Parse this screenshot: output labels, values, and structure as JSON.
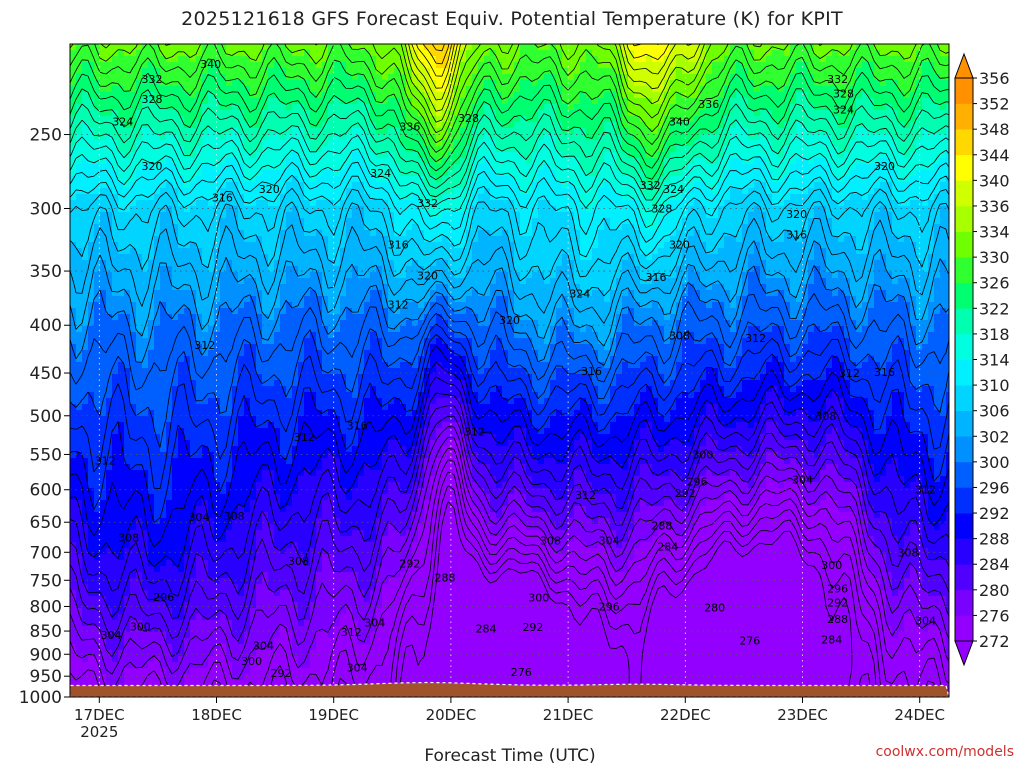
{
  "title": "2025121618 GFS Forecast Equiv. Potential Temperature (K) for KPIT",
  "xlabel": "Forecast Time (UTC)",
  "credit": "coolwx.com/models",
  "colors": {
    "ground": "#a0522d",
    "contour": "#000000",
    "grid": "#555555"
  },
  "chart_data": {
    "type": "heatmap",
    "title": "2025121618 GFS Forecast Equiv. Potential Temperature (K) for KPIT",
    "xlabel": "Forecast Time (UTC)",
    "ylabel": "",
    "y_axis_scale": "log pressure (hPa), decreasing upward",
    "ylim": [
      1000,
      200
    ],
    "y_ticks": [
      250,
      300,
      350,
      400,
      450,
      500,
      550,
      600,
      650,
      700,
      750,
      800,
      850,
      900,
      950,
      1000
    ],
    "x_ticks": [
      {
        "label": "17DEC",
        "sublabel": "2025",
        "day": 0
      },
      {
        "label": "18DEC",
        "day": 1
      },
      {
        "label": "19DEC",
        "day": 2
      },
      {
        "label": "20DEC",
        "day": 3
      },
      {
        "label": "21DEC",
        "day": 4
      },
      {
        "label": "22DEC",
        "day": 5
      },
      {
        "label": "23DEC",
        "day": 6
      },
      {
        "label": "24DEC",
        "day": 7
      }
    ],
    "xlim_days": [
      -0.25,
      7.25
    ],
    "colorbar": {
      "levels": [
        272,
        276,
        280,
        284,
        288,
        292,
        296,
        300,
        302,
        306,
        310,
        314,
        318,
        322,
        326,
        330,
        334,
        336,
        340,
        344,
        348,
        352,
        356
      ],
      "colors": [
        "#9400ff",
        "#7a00ff",
        "#5000ff",
        "#2800ff",
        "#0000ff",
        "#0030ff",
        "#0060ff",
        "#0090ff",
        "#00b4ff",
        "#00d4ff",
        "#00f0ff",
        "#00ffe0",
        "#00ffb0",
        "#00ff70",
        "#30ff30",
        "#70ff00",
        "#a8ff00",
        "#d0ff00",
        "#ffff00",
        "#ffd800",
        "#ffb000",
        "#ff9000"
      ],
      "extend": "both"
    },
    "contour_labels": [
      {
        "day": 0.95,
        "p": 210,
        "v": "340"
      },
      {
        "day": 0.45,
        "p": 218,
        "v": "332"
      },
      {
        "day": 0.45,
        "p": 229,
        "v": "328"
      },
      {
        "day": 0.2,
        "p": 242,
        "v": "324"
      },
      {
        "day": 0.45,
        "p": 270,
        "v": "320"
      },
      {
        "day": 1.05,
        "p": 292,
        "v": "316"
      },
      {
        "day": 1.45,
        "p": 286,
        "v": "320"
      },
      {
        "day": 0.9,
        "p": 420,
        "v": "312"
      },
      {
        "day": 0.05,
        "p": 558,
        "v": "312"
      },
      {
        "day": 0.25,
        "p": 675,
        "v": "308"
      },
      {
        "day": 0.85,
        "p": 642,
        "v": "304"
      },
      {
        "day": 1.15,
        "p": 640,
        "v": "308"
      },
      {
        "day": 1.75,
        "p": 527,
        "v": "312"
      },
      {
        "day": 1.7,
        "p": 715,
        "v": "308"
      },
      {
        "day": 0.55,
        "p": 782,
        "v": "296"
      },
      {
        "day": 0.35,
        "p": 840,
        "v": "300"
      },
      {
        "day": 0.1,
        "p": 858,
        "v": "304"
      },
      {
        "day": 1.4,
        "p": 881,
        "v": "304"
      },
      {
        "day": 1.3,
        "p": 915,
        "v": "300"
      },
      {
        "day": 1.55,
        "p": 942,
        "v": "292"
      },
      {
        "day": 2.2,
        "p": 512,
        "v": "316"
      },
      {
        "day": 2.65,
        "p": 245,
        "v": "336"
      },
      {
        "day": 2.4,
        "p": 275,
        "v": "324"
      },
      {
        "day": 2.8,
        "p": 296,
        "v": "332"
      },
      {
        "day": 3.15,
        "p": 240,
        "v": "328"
      },
      {
        "day": 2.55,
        "p": 328,
        "v": "316"
      },
      {
        "day": 2.8,
        "p": 354,
        "v": "320"
      },
      {
        "day": 2.55,
        "p": 380,
        "v": "312"
      },
      {
        "day": 3.2,
        "p": 520,
        "v": "312"
      },
      {
        "day": 2.15,
        "p": 852,
        "v": "312"
      },
      {
        "day": 2.35,
        "p": 832,
        "v": "304"
      },
      {
        "day": 2.2,
        "p": 930,
        "v": "304"
      },
      {
        "day": 2.65,
        "p": 720,
        "v": "292"
      },
      {
        "day": 2.95,
        "p": 745,
        "v": "288"
      },
      {
        "day": 3.3,
        "p": 845,
        "v": "284"
      },
      {
        "day": 3.6,
        "p": 940,
        "v": "276"
      },
      {
        "day": 3.5,
        "p": 395,
        "v": "320"
      },
      {
        "day": 4.1,
        "p": 370,
        "v": "324"
      },
      {
        "day": 4.2,
        "p": 448,
        "v": "316"
      },
      {
        "day": 4.15,
        "p": 608,
        "v": "312"
      },
      {
        "day": 3.85,
        "p": 680,
        "v": "308"
      },
      {
        "day": 4.35,
        "p": 680,
        "v": "304"
      },
      {
        "day": 3.75,
        "p": 783,
        "v": "300"
      },
      {
        "day": 3.7,
        "p": 842,
        "v": "292"
      },
      {
        "day": 4.35,
        "p": 800,
        "v": "296"
      },
      {
        "day": 4.7,
        "p": 283,
        "v": "332"
      },
      {
        "day": 4.9,
        "p": 286,
        "v": "324"
      },
      {
        "day": 4.8,
        "p": 300,
        "v": "328"
      },
      {
        "day": 5.2,
        "p": 232,
        "v": "336"
      },
      {
        "day": 4.95,
        "p": 242,
        "v": "340"
      },
      {
        "day": 4.95,
        "p": 328,
        "v": "320"
      },
      {
        "day": 4.75,
        "p": 355,
        "v": "316"
      },
      {
        "day": 4.95,
        "p": 410,
        "v": "308"
      },
      {
        "day": 5.6,
        "p": 413,
        "v": "312"
      },
      {
        "day": 5.95,
        "p": 304,
        "v": "320"
      },
      {
        "day": 5.95,
        "p": 320,
        "v": "316"
      },
      {
        "day": 5.15,
        "p": 550,
        "v": "300"
      },
      {
        "day": 5.1,
        "p": 588,
        "v": "296"
      },
      {
        "day": 5.0,
        "p": 605,
        "v": "292"
      },
      {
        "day": 4.8,
        "p": 655,
        "v": "288"
      },
      {
        "day": 4.85,
        "p": 690,
        "v": "284"
      },
      {
        "day": 5.25,
        "p": 802,
        "v": "280"
      },
      {
        "day": 5.55,
        "p": 870,
        "v": "276"
      },
      {
        "day": 6.0,
        "p": 585,
        "v": "304"
      },
      {
        "day": 6.2,
        "p": 500,
        "v": "308"
      },
      {
        "day": 6.4,
        "p": 450,
        "v": "312"
      },
      {
        "day": 6.7,
        "p": 449,
        "v": "316"
      },
      {
        "day": 6.7,
        "p": 270,
        "v": "320"
      },
      {
        "day": 6.3,
        "p": 218,
        "v": "332"
      },
      {
        "day": 6.35,
        "p": 226,
        "v": "328"
      },
      {
        "day": 6.35,
        "p": 235,
        "v": "324"
      },
      {
        "day": 6.25,
        "p": 722,
        "v": "300"
      },
      {
        "day": 6.3,
        "p": 765,
        "v": "296"
      },
      {
        "day": 6.3,
        "p": 792,
        "v": "292"
      },
      {
        "day": 6.3,
        "p": 825,
        "v": "288"
      },
      {
        "day": 6.25,
        "p": 868,
        "v": "284"
      },
      {
        "day": 6.9,
        "p": 700,
        "v": "308"
      },
      {
        "day": 7.05,
        "p": 600,
        "v": "312"
      },
      {
        "day": 7.05,
        "p": 828,
        "v": "304"
      }
    ]
  }
}
